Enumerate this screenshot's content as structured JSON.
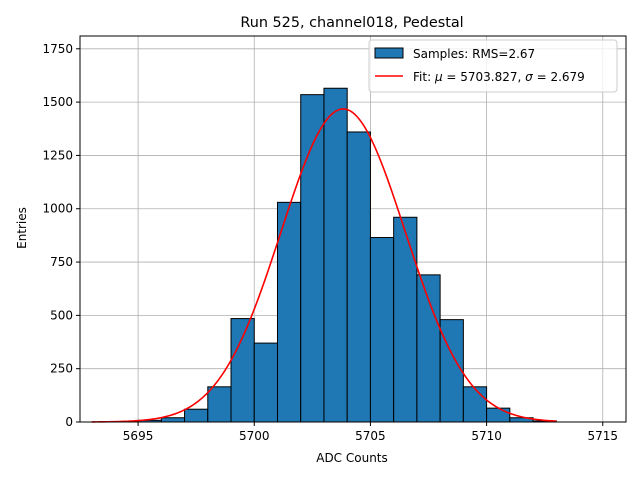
{
  "chart_data": {
    "type": "bar",
    "title": "Run 525, channel018, Pedestal",
    "xlabel": "ADC Counts",
    "ylabel": "Entries",
    "xlim": [
      5692.5,
      5716.0
    ],
    "ylim": [
      0,
      1810
    ],
    "grid": true,
    "legend_position": "top-right",
    "xticks": [
      5695,
      5700,
      5705,
      5710,
      5715
    ],
    "yticks": [
      0,
      250,
      500,
      750,
      1000,
      1250,
      1500,
      1750
    ],
    "series": [
      {
        "name": "Samples: RMS=2.67",
        "kind": "histogram",
        "color": "#1f77b4",
        "edgecolor": "#000000",
        "bin_width": 1,
        "bins_start": [
          5693,
          5694,
          5695,
          5696,
          5697,
          5698,
          5699,
          5700,
          5701,
          5702,
          5703,
          5704,
          5705,
          5706,
          5707,
          5708,
          5709,
          5710,
          5711,
          5712
        ],
        "values": [
          0,
          2,
          8,
          20,
          60,
          165,
          485,
          370,
          1030,
          1535,
          1565,
          1360,
          865,
          960,
          690,
          480,
          165,
          65,
          20,
          5
        ]
      },
      {
        "name_prefix": "Fit: ",
        "name_mu": "μ",
        "name_mid": " = 5703.827, ",
        "name_sigma": "σ",
        "name_suffix": " = 2.679",
        "kind": "gaussian",
        "color": "#ff0000",
        "mu": 5703.827,
        "sigma": 2.679,
        "amplitude": 1468,
        "x_range": [
          5693,
          5713
        ]
      }
    ]
  }
}
